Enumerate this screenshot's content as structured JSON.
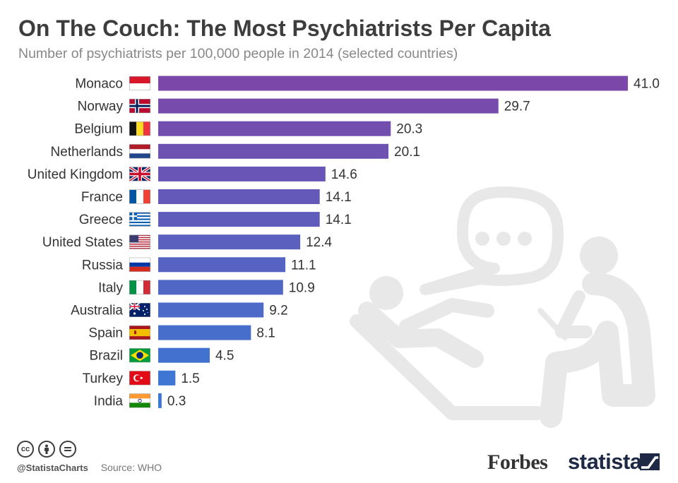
{
  "header": {
    "title": "On The Couch: The Most Psychiatrists Per Capita",
    "subtitle": "Number of psychiatrists per 100,000 people in 2014 (selected countries)"
  },
  "chart_data": {
    "type": "bar",
    "orientation": "horizontal",
    "categories": [
      "Monaco",
      "Norway",
      "Belgium",
      "Netherlands",
      "United Kingdom",
      "France",
      "Greece",
      "United States",
      "Russia",
      "Italy",
      "Australia",
      "Spain",
      "Brazil",
      "Turkey",
      "India"
    ],
    "values": [
      41.0,
      29.7,
      20.3,
      20.1,
      14.6,
      14.1,
      14.1,
      12.4,
      11.1,
      10.9,
      9.2,
      8.1,
      4.5,
      1.5,
      0.3
    ],
    "value_labels": [
      "41.0",
      "29.7",
      "20.3",
      "20.1",
      "14.6",
      "14.1",
      "14.1",
      "12.4",
      "11.1",
      "10.9",
      "9.2",
      "8.1",
      "4.5",
      "1.5",
      "0.3"
    ],
    "xlim": [
      0,
      41
    ],
    "grid": false,
    "legend": "none",
    "bar_color_top": "#7b47a8",
    "bar_color_bottom": "#3a78d6",
    "flags": [
      "monaco-flag-icon",
      "norway-flag-icon",
      "belgium-flag-icon",
      "netherlands-flag-icon",
      "uk-flag-icon",
      "france-flag-icon",
      "greece-flag-icon",
      "usa-flag-icon",
      "russia-flag-icon",
      "italy-flag-icon",
      "australia-flag-icon",
      "spain-flag-icon",
      "brazil-flag-icon",
      "turkey-flag-icon",
      "india-flag-icon"
    ]
  },
  "footer": {
    "license_icons": [
      "cc-icon",
      "attribution-icon",
      "no-derivatives-icon"
    ],
    "handle": "@StatistaCharts",
    "source": "Source: WHO",
    "forbes_logo": "Forbes",
    "statista_logo": "statista"
  }
}
